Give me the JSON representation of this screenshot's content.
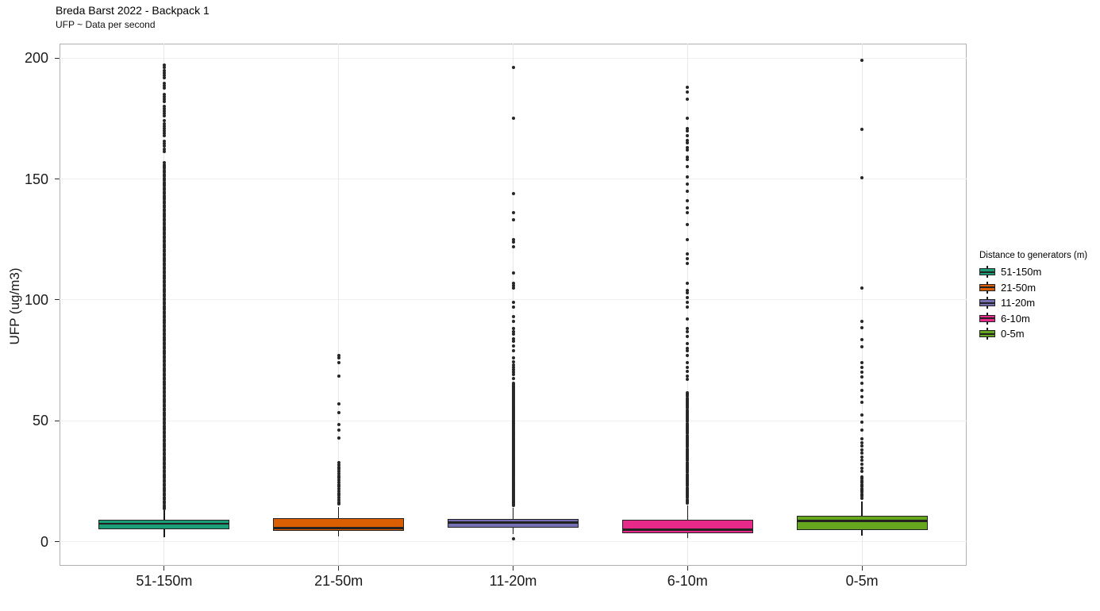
{
  "header": {
    "title": "Breda Barst 2022 - Backpack 1",
    "subtitle": "UFP ~ Data per second"
  },
  "chart_data": {
    "type": "boxplot",
    "title": "Breda Barst 2022 - Backpack 1",
    "subtitle": "UFP ~ Data per second",
    "xlabel": "",
    "ylabel": "UFP (ug/m3)",
    "categories": [
      "51-150m",
      "21-50m",
      "11-20m",
      "6-10m",
      "0-5m"
    ],
    "yticks": [
      0,
      50,
      100,
      150,
      200
    ],
    "ylim": [
      -10,
      206
    ],
    "grid": true,
    "legend": {
      "title": "Distance to generators (m)",
      "position": "right"
    },
    "series": [
      {
        "label": "51-150m",
        "color": "#1B9E77",
        "stats": {
          "whisker_low": 1.7,
          "q1": 5.2,
          "median": 7.4,
          "q3": 9.0,
          "whisker_high": 13.1
        },
        "outlier_runs": [
          [
            13.5,
            157,
            0.8
          ]
        ],
        "outlier_points": [
          161.5,
          162.5,
          163.5,
          164.5,
          165.5,
          168,
          169,
          170,
          171,
          172,
          173,
          174,
          176,
          177,
          178,
          179,
          180,
          182,
          183,
          184,
          185,
          187.5,
          188.5,
          189.5,
          192,
          193,
          194,
          195,
          196,
          197
        ]
      },
      {
        "label": "21-50m",
        "color": "#D95F02",
        "stats": {
          "whisker_low": 2.0,
          "q1": 4.3,
          "median": 5.6,
          "q3": 9.8,
          "whisker_high": 14.2
        },
        "outlier_runs": [
          [
            15.5,
            33,
            0.9
          ]
        ],
        "outlier_points": [
          43,
          46,
          48.5,
          53.5,
          57,
          68.5,
          74,
          76,
          77
        ]
      },
      {
        "label": "11-20m",
        "color": "#7570B3",
        "stats": {
          "whisker_low": 3.0,
          "q1": 5.9,
          "median": 7.9,
          "q3": 9.5,
          "whisker_high": 14.1
        },
        "outlier_runs": [
          [
            15,
            66,
            0.6
          ]
        ],
        "outlier_points": [
          1.3,
          67.5,
          69,
          70,
          71,
          72,
          73,
          74.5,
          76,
          79,
          81,
          83,
          84,
          86,
          87,
          88,
          91,
          93,
          97,
          99,
          105,
          106,
          107,
          111,
          122,
          124,
          125,
          133,
          136,
          144,
          175,
          196
        ]
      },
      {
        "label": "6-10m",
        "color": "#E7298A",
        "stats": {
          "whisker_low": 1.6,
          "q1": 3.6,
          "median": 4.9,
          "q3": 8.9,
          "whisker_high": 15.1
        },
        "outlier_runs": [
          [
            16,
            62,
            0.7
          ]
        ],
        "outlier_points": [
          67,
          68.5,
          70.5,
          72,
          74,
          77,
          79,
          80,
          82,
          85,
          87,
          88,
          92,
          97,
          99,
          101,
          103,
          104,
          107,
          115,
          117,
          119,
          125,
          131,
          136,
          138,
          141,
          145,
          148,
          151,
          155,
          158,
          159,
          162,
          163,
          165,
          166,
          168,
          170,
          171,
          175,
          183,
          186,
          188
        ]
      },
      {
        "label": "0-5m",
        "color": "#66A61E",
        "stats": {
          "whisker_low": 2.6,
          "q1": 4.9,
          "median": 8.5,
          "q3": 10.8,
          "whisker_high": 16.7
        },
        "outlier_runs": [
          [
            18,
            27.5,
            0.8
          ]
        ],
        "outlier_points": [
          29,
          30.5,
          32,
          33.5,
          35,
          36.5,
          38,
          39.5,
          41,
          42.5,
          46,
          49.5,
          52.5,
          57.5,
          60,
          62.5,
          65.5,
          68,
          70,
          72,
          74,
          80.5,
          83.5,
          88.5,
          91,
          105,
          150.5,
          170.5,
          199
        ]
      }
    ]
  }
}
